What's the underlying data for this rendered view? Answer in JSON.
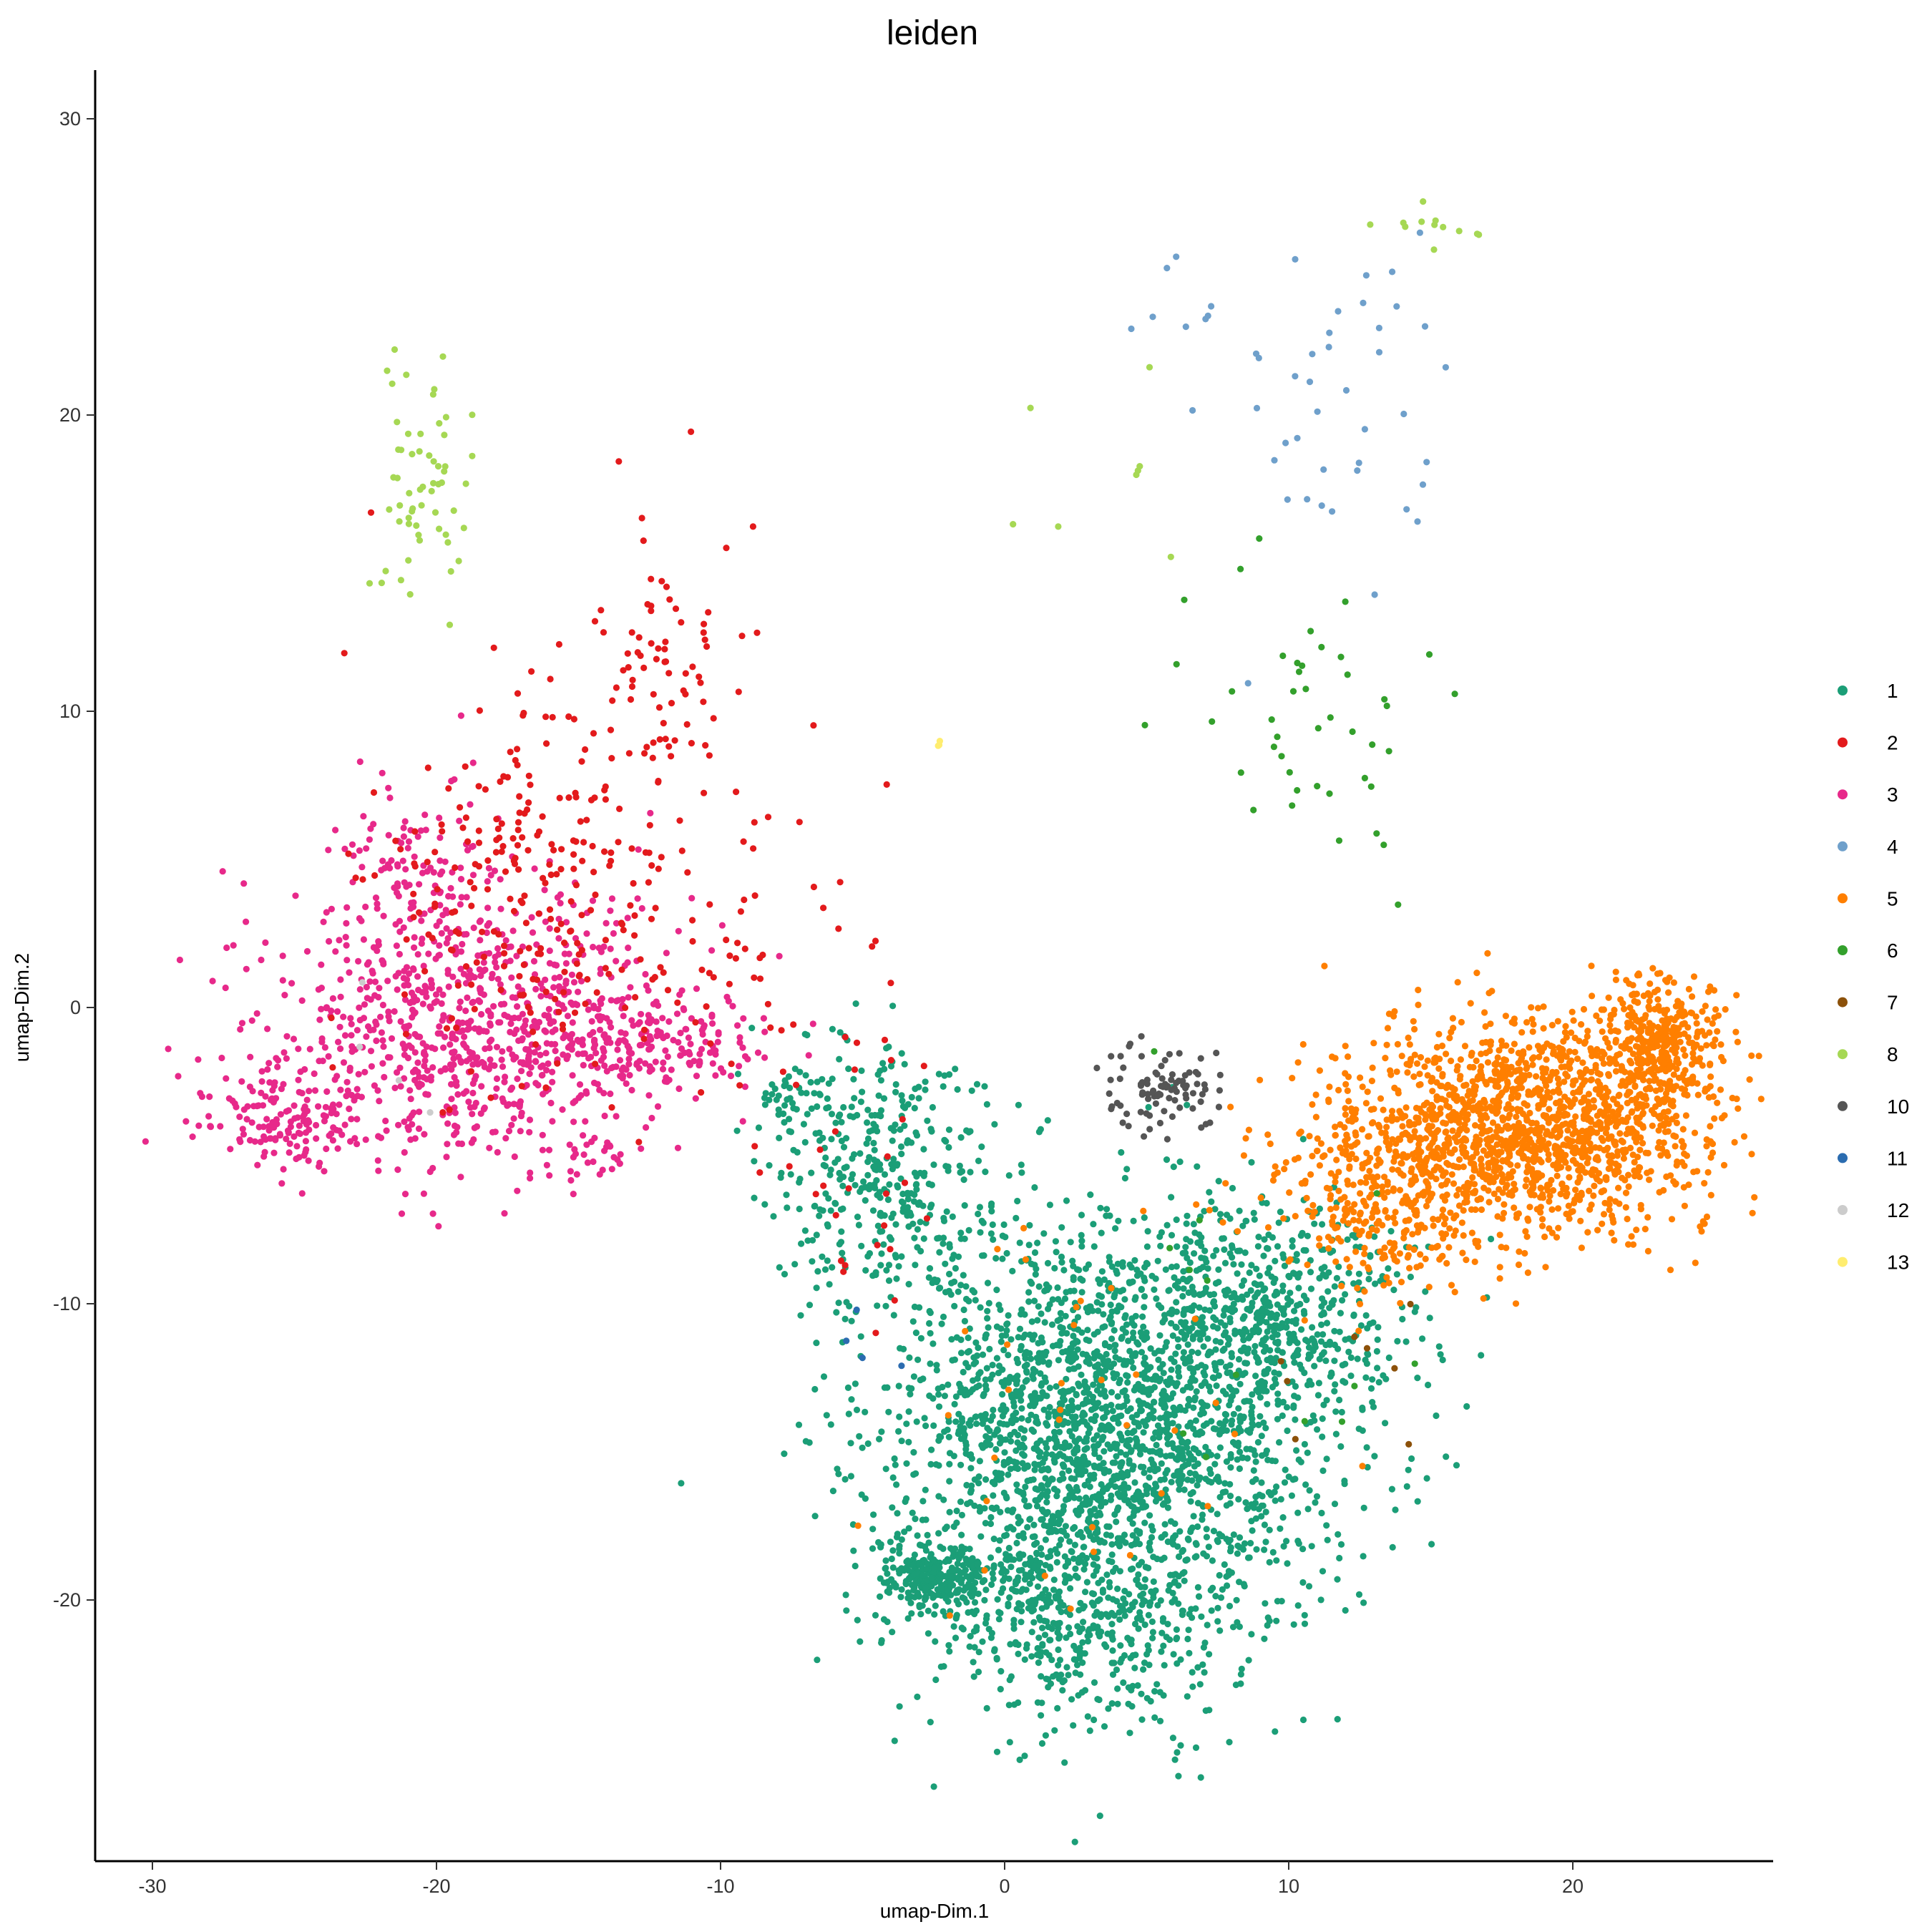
{
  "chart_data": {
    "type": "scatter",
    "title": "leiden",
    "xlabel": "umap-Dim.1",
    "ylabel": "umap-Dim.2",
    "xlim": [
      -32,
      27
    ],
    "ylim": [
      -29,
      31.5
    ],
    "xticks": [
      "-30",
      "-20",
      "-10",
      "0",
      "10",
      "20"
    ],
    "yticks": [
      "30",
      "20",
      "10",
      "0",
      "-10",
      "-20"
    ],
    "grid": false,
    "legend_position": "right",
    "series": [
      {
        "name": "1",
        "color": "#1B9E77"
      },
      {
        "name": "2",
        "color": "#E31A1C"
      },
      {
        "name": "3",
        "color": "#E7298A"
      },
      {
        "name": "4",
        "color": "#6FA0CB"
      },
      {
        "name": "5",
        "color": "#FF7F00"
      },
      {
        "name": "6",
        "color": "#33A02C"
      },
      {
        "name": "7",
        "color": "#8C510A"
      },
      {
        "name": "8",
        "color": "#A6D854"
      },
      {
        "name": "10",
        "color": "#555555"
      },
      {
        "name": "11",
        "color": "#2B6CB0"
      },
      {
        "name": "12",
        "color": "#CCCCCC"
      },
      {
        "name": "13",
        "color": "#FFED6F"
      }
    ],
    "clusters": [
      {
        "series": "1",
        "regions": [
          {
            "cx": 3.5,
            "cy": -14.5,
            "sx": 3.8,
            "sy": 3.8,
            "n": 2400
          },
          {
            "cx": 9.5,
            "cy": -10.5,
            "sx": 2.5,
            "sy": 2.0,
            "n": 500
          },
          {
            "cx": -2.5,
            "cy": -19.2,
            "sx": 1.0,
            "sy": 0.45,
            "n": 250
          },
          {
            "cx": -4.5,
            "cy": -5.5,
            "sx": 2.0,
            "sy": 2.2,
            "n": 350
          },
          {
            "cx": 2.0,
            "cy": -20.5,
            "sx": 2.8,
            "sy": 1.5,
            "n": 300
          },
          {
            "cx": -7.0,
            "cy": -3.0,
            "sx": 1.3,
            "sy": 0.8,
            "n": 40
          },
          {
            "cx": 5.0,
            "cy": -24.0,
            "sx": 2.0,
            "sy": 1.3,
            "n": 25
          }
        ]
      },
      {
        "series": "2",
        "regions": [
          {
            "cx": -16.5,
            "cy": 4.0,
            "sx": 3.2,
            "sy": 3.3,
            "n": 260
          },
          {
            "cx": -12.0,
            "cy": 11.5,
            "sx": 1.3,
            "sy": 2.5,
            "n": 70
          },
          {
            "cx": -9.0,
            "cy": 1.5,
            "sx": 2.5,
            "sy": 3.0,
            "n": 50
          },
          {
            "cx": -5.5,
            "cy": -6.0,
            "sx": 1.6,
            "sy": 2.2,
            "n": 25
          }
        ]
      },
      {
        "series": "3",
        "regions": [
          {
            "cx": -19.0,
            "cy": -0.5,
            "sx": 3.5,
            "sy": 2.4,
            "n": 800
          },
          {
            "cx": -25.5,
            "cy": -3.5,
            "sx": 1.5,
            "sy": 0.9,
            "n": 150
          },
          {
            "cx": -13.0,
            "cy": -1.2,
            "sx": 2.2,
            "sy": 0.9,
            "n": 220
          },
          {
            "cx": -21.0,
            "cy": 5.0,
            "sx": 1.5,
            "sy": 1.5,
            "n": 90
          },
          {
            "cx": -14.5,
            "cy": -5.0,
            "sx": 0.8,
            "sy": 0.5,
            "n": 25
          }
        ]
      },
      {
        "series": "4",
        "regions": [
          {
            "cx": 11.5,
            "cy": 20.0,
            "sx": 2.3,
            "sy": 3.0,
            "n": 40
          },
          {
            "cx": 7.0,
            "cy": 23.5,
            "sx": 1.3,
            "sy": 1.0,
            "n": 8
          }
        ]
      },
      {
        "series": "5",
        "regions": [
          {
            "cx": 18.5,
            "cy": -4.0,
            "sx": 3.2,
            "sy": 1.8,
            "n": 1500
          },
          {
            "cx": 23.0,
            "cy": -1.3,
            "sx": 1.0,
            "sy": 1.2,
            "n": 350
          },
          {
            "cx": 13.5,
            "cy": -6.5,
            "sx": 1.8,
            "sy": 1.6,
            "n": 300
          },
          {
            "cx": 4.0,
            "cy": -13.0,
            "sx": 4.0,
            "sy": 4.5,
            "n": 40
          }
        ]
      },
      {
        "series": "6",
        "regions": [
          {
            "cx": 11.0,
            "cy": 9.0,
            "sx": 2.5,
            "sy": 3.5,
            "n": 45
          },
          {
            "cx": 9.0,
            "cy": -12.0,
            "sx": 3.0,
            "sy": 3.0,
            "n": 12
          }
        ]
      },
      {
        "series": "7",
        "regions": [
          {
            "cx": 12.5,
            "cy": -13.5,
            "sx": 1.2,
            "sy": 3.0,
            "n": 8
          }
        ]
      },
      {
        "series": "8",
        "regions": [
          {
            "cx": -20.4,
            "cy": 18.0,
            "sx": 0.8,
            "sy": 2.8,
            "n": 60
          },
          {
            "cx": 15.0,
            "cy": 26.3,
            "sx": 0.9,
            "sy": 0.6,
            "n": 12
          },
          {
            "cx": 4.0,
            "cy": 17.5,
            "sx": 2.0,
            "sy": 2.5,
            "n": 8
          }
        ]
      },
      {
        "series": "10",
        "regions": [
          {
            "cx": 5.5,
            "cy": -2.8,
            "sx": 0.9,
            "sy": 0.7,
            "n": 90
          }
        ]
      },
      {
        "series": "11",
        "regions": [
          {
            "cx": -5.0,
            "cy": -11.5,
            "sx": 0.6,
            "sy": 0.5,
            "n": 4
          }
        ]
      },
      {
        "series": "12",
        "regions": [
          {
            "cx": -23.0,
            "cy": -1.5,
            "sx": 1.2,
            "sy": 1.0,
            "n": 4
          }
        ]
      },
      {
        "series": "13",
        "regions": [
          {
            "cx": -2.3,
            "cy": 8.9,
            "sx": 0.1,
            "sy": 0.08,
            "n": 3
          }
        ]
      }
    ]
  }
}
